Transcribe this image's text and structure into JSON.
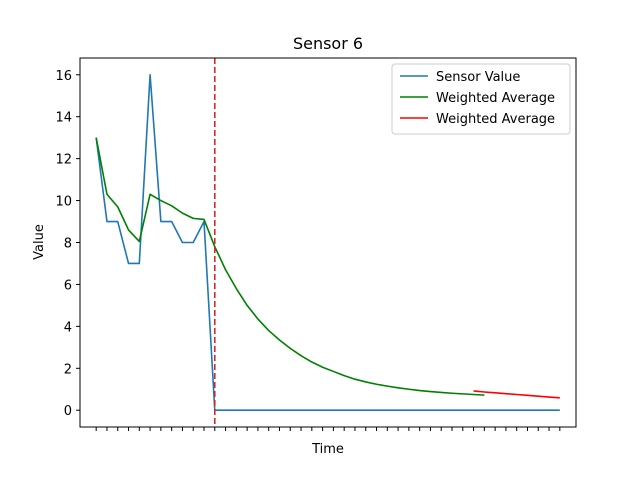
{
  "chart_data": {
    "type": "line",
    "title": "Sensor 6",
    "xlabel": "Time",
    "ylabel": "Value",
    "ylim": [
      -0.8,
      16.8
    ],
    "yticks": [
      0,
      2,
      4,
      6,
      8,
      10,
      12,
      14,
      16
    ],
    "x_tick_labels_shown": false,
    "grid": false,
    "legend_position": "top-right",
    "change_marker": {
      "x": 11,
      "style": "dashed",
      "color": "#d62728"
    },
    "series": [
      {
        "name": "Sensor Value",
        "color": "#1f77b4",
        "x": [
          0,
          1,
          2,
          3,
          4,
          5,
          6,
          7,
          8,
          9,
          10,
          11,
          12,
          13,
          14,
          15,
          16,
          17,
          18,
          19,
          20,
          21,
          22,
          23,
          24,
          25,
          26,
          27,
          28,
          29,
          30,
          31,
          32,
          33,
          34,
          35,
          36,
          37,
          38,
          39,
          40,
          41,
          42,
          43
        ],
        "values": [
          13,
          9,
          9,
          7,
          7,
          16,
          9,
          9,
          8,
          8,
          9,
          0,
          0,
          0,
          0,
          0,
          0,
          0,
          0,
          0,
          0,
          0,
          0,
          0,
          0,
          0,
          0,
          0,
          0,
          0,
          0,
          0,
          0,
          0,
          0,
          0,
          0,
          0,
          0,
          0,
          0,
          0,
          0,
          0
        ]
      },
      {
        "name": "Weighted Average",
        "color": "#008000",
        "x": [
          0,
          1,
          2,
          3,
          4,
          5,
          6,
          7,
          8,
          9,
          10,
          11,
          12,
          13,
          14,
          15,
          16,
          17,
          18,
          19,
          20,
          21,
          22,
          23,
          24,
          25,
          26,
          27,
          28,
          29,
          30,
          31,
          32,
          33,
          34,
          35,
          36
        ],
        "values": [
          13,
          10.3,
          9.7,
          8.6,
          8.05,
          10.3,
          10.0,
          9.75,
          9.4,
          9.15,
          9.1,
          7.8,
          6.7,
          5.8,
          5.0,
          4.35,
          3.8,
          3.35,
          2.95,
          2.6,
          2.3,
          2.05,
          1.85,
          1.65,
          1.48,
          1.35,
          1.24,
          1.15,
          1.07,
          1.0,
          0.94,
          0.89,
          0.85,
          0.81,
          0.78,
          0.75,
          0.72
        ]
      },
      {
        "name": "Weighted Average",
        "color": "#ff0000",
        "x": [
          35,
          36,
          37,
          38,
          39,
          40,
          41,
          42,
          43
        ],
        "values": [
          0.92,
          0.87,
          0.83,
          0.79,
          0.75,
          0.71,
          0.67,
          0.63,
          0.59
        ]
      }
    ]
  }
}
